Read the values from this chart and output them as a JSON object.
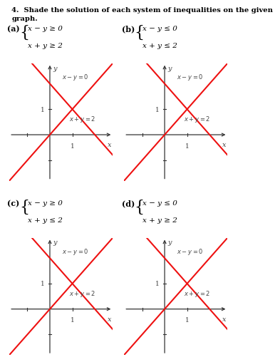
{
  "title_line1": "4.  Shade the solution of each system of inequalities on the given",
  "title_line2": "graph.",
  "panels": [
    {
      "label": "(a)",
      "ineq1": "x − y ≥ 0",
      "ineq2": "x + y ≥ 2"
    },
    {
      "label": "(b)",
      "ineq1": "x − y ≤ 0",
      "ineq2": "x + y ≤ 2"
    },
    {
      "label": "(c)",
      "ineq1": "x − y ≥ 0",
      "ineq2": "x + y ≤ 2"
    },
    {
      "label": "(d)",
      "ineq1": "x − y ≤ 0",
      "ineq2": "x + y ≥ 2"
    }
  ],
  "line_color": "#ee1111",
  "line_width": 1.5,
  "axis_color": "#333333",
  "label_color": "#444444",
  "bg_color": "#ffffff",
  "xlim": [
    -1.8,
    2.8
  ],
  "ylim": [
    -1.8,
    2.8
  ],
  "line1_label": "x − y = 0",
  "line2_label": "x + y = 2"
}
